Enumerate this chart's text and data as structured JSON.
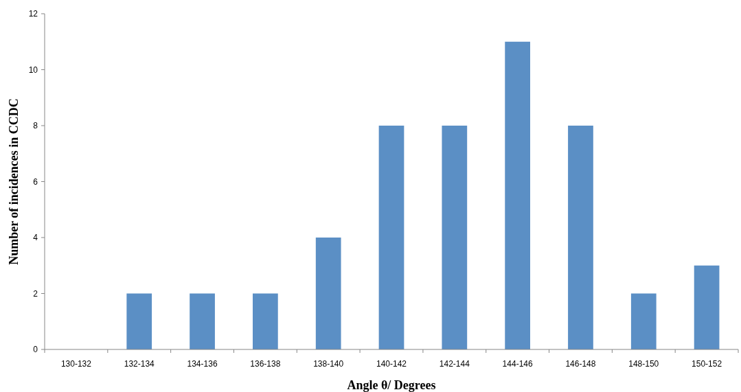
{
  "chart_data": {
    "type": "bar",
    "xlabel": "Angle θ/ Degrees",
    "ylabel": "Number of incidences in CCDC",
    "categories": [
      "130-132",
      "132-134",
      "134-136",
      "136-138",
      "138-140",
      "140-142",
      "142-144",
      "144-146",
      "146-148",
      "148-150",
      "150-152"
    ],
    "values": [
      0,
      2,
      2,
      2,
      4,
      8,
      8,
      11,
      8,
      2,
      3
    ],
    "color": "#5b8fc5",
    "ylim": [
      0,
      12
    ],
    "yticks": [
      0,
      2,
      4,
      6,
      8,
      10,
      12
    ],
    "grid": false
  }
}
